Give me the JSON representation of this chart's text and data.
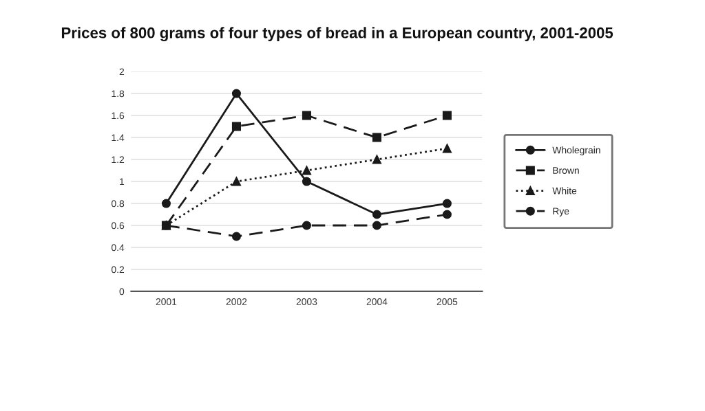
{
  "chart_data": {
    "type": "line",
    "title": "Prices of 800 grams of four types of bread in a European country, 2001-2005",
    "categories": [
      "2001",
      "2002",
      "2003",
      "2004",
      "2005"
    ],
    "series": [
      {
        "name": "Wholegrain",
        "color": "#1a1a1a",
        "values": [
          0.8,
          1.8,
          1.0,
          0.7,
          0.8
        ],
        "marker": "circle",
        "line_style": "solid"
      },
      {
        "name": "Brown",
        "color": "#1a1a1a",
        "values": [
          0.6,
          1.5,
          1.6,
          1.4,
          1.6
        ],
        "marker": "square",
        "line_style": "dashed"
      },
      {
        "name": "White",
        "color": "#1a1a1a",
        "values": [
          0.6,
          1.0,
          1.1,
          1.2,
          1.3
        ],
        "marker": "triangle",
        "line_style": "dotted"
      },
      {
        "name": "Rye",
        "color": "#1a1a1a",
        "values": [
          0.6,
          0.5,
          0.6,
          0.6,
          0.7
        ],
        "marker": "circle",
        "line_style": "dashed"
      }
    ],
    "ylim": [
      0,
      2
    ],
    "yticks": [
      0,
      0.2,
      0.4,
      0.6,
      0.8,
      1,
      1.2,
      1.4,
      1.6,
      1.8,
      2
    ],
    "grid": "y",
    "legend": "right"
  }
}
